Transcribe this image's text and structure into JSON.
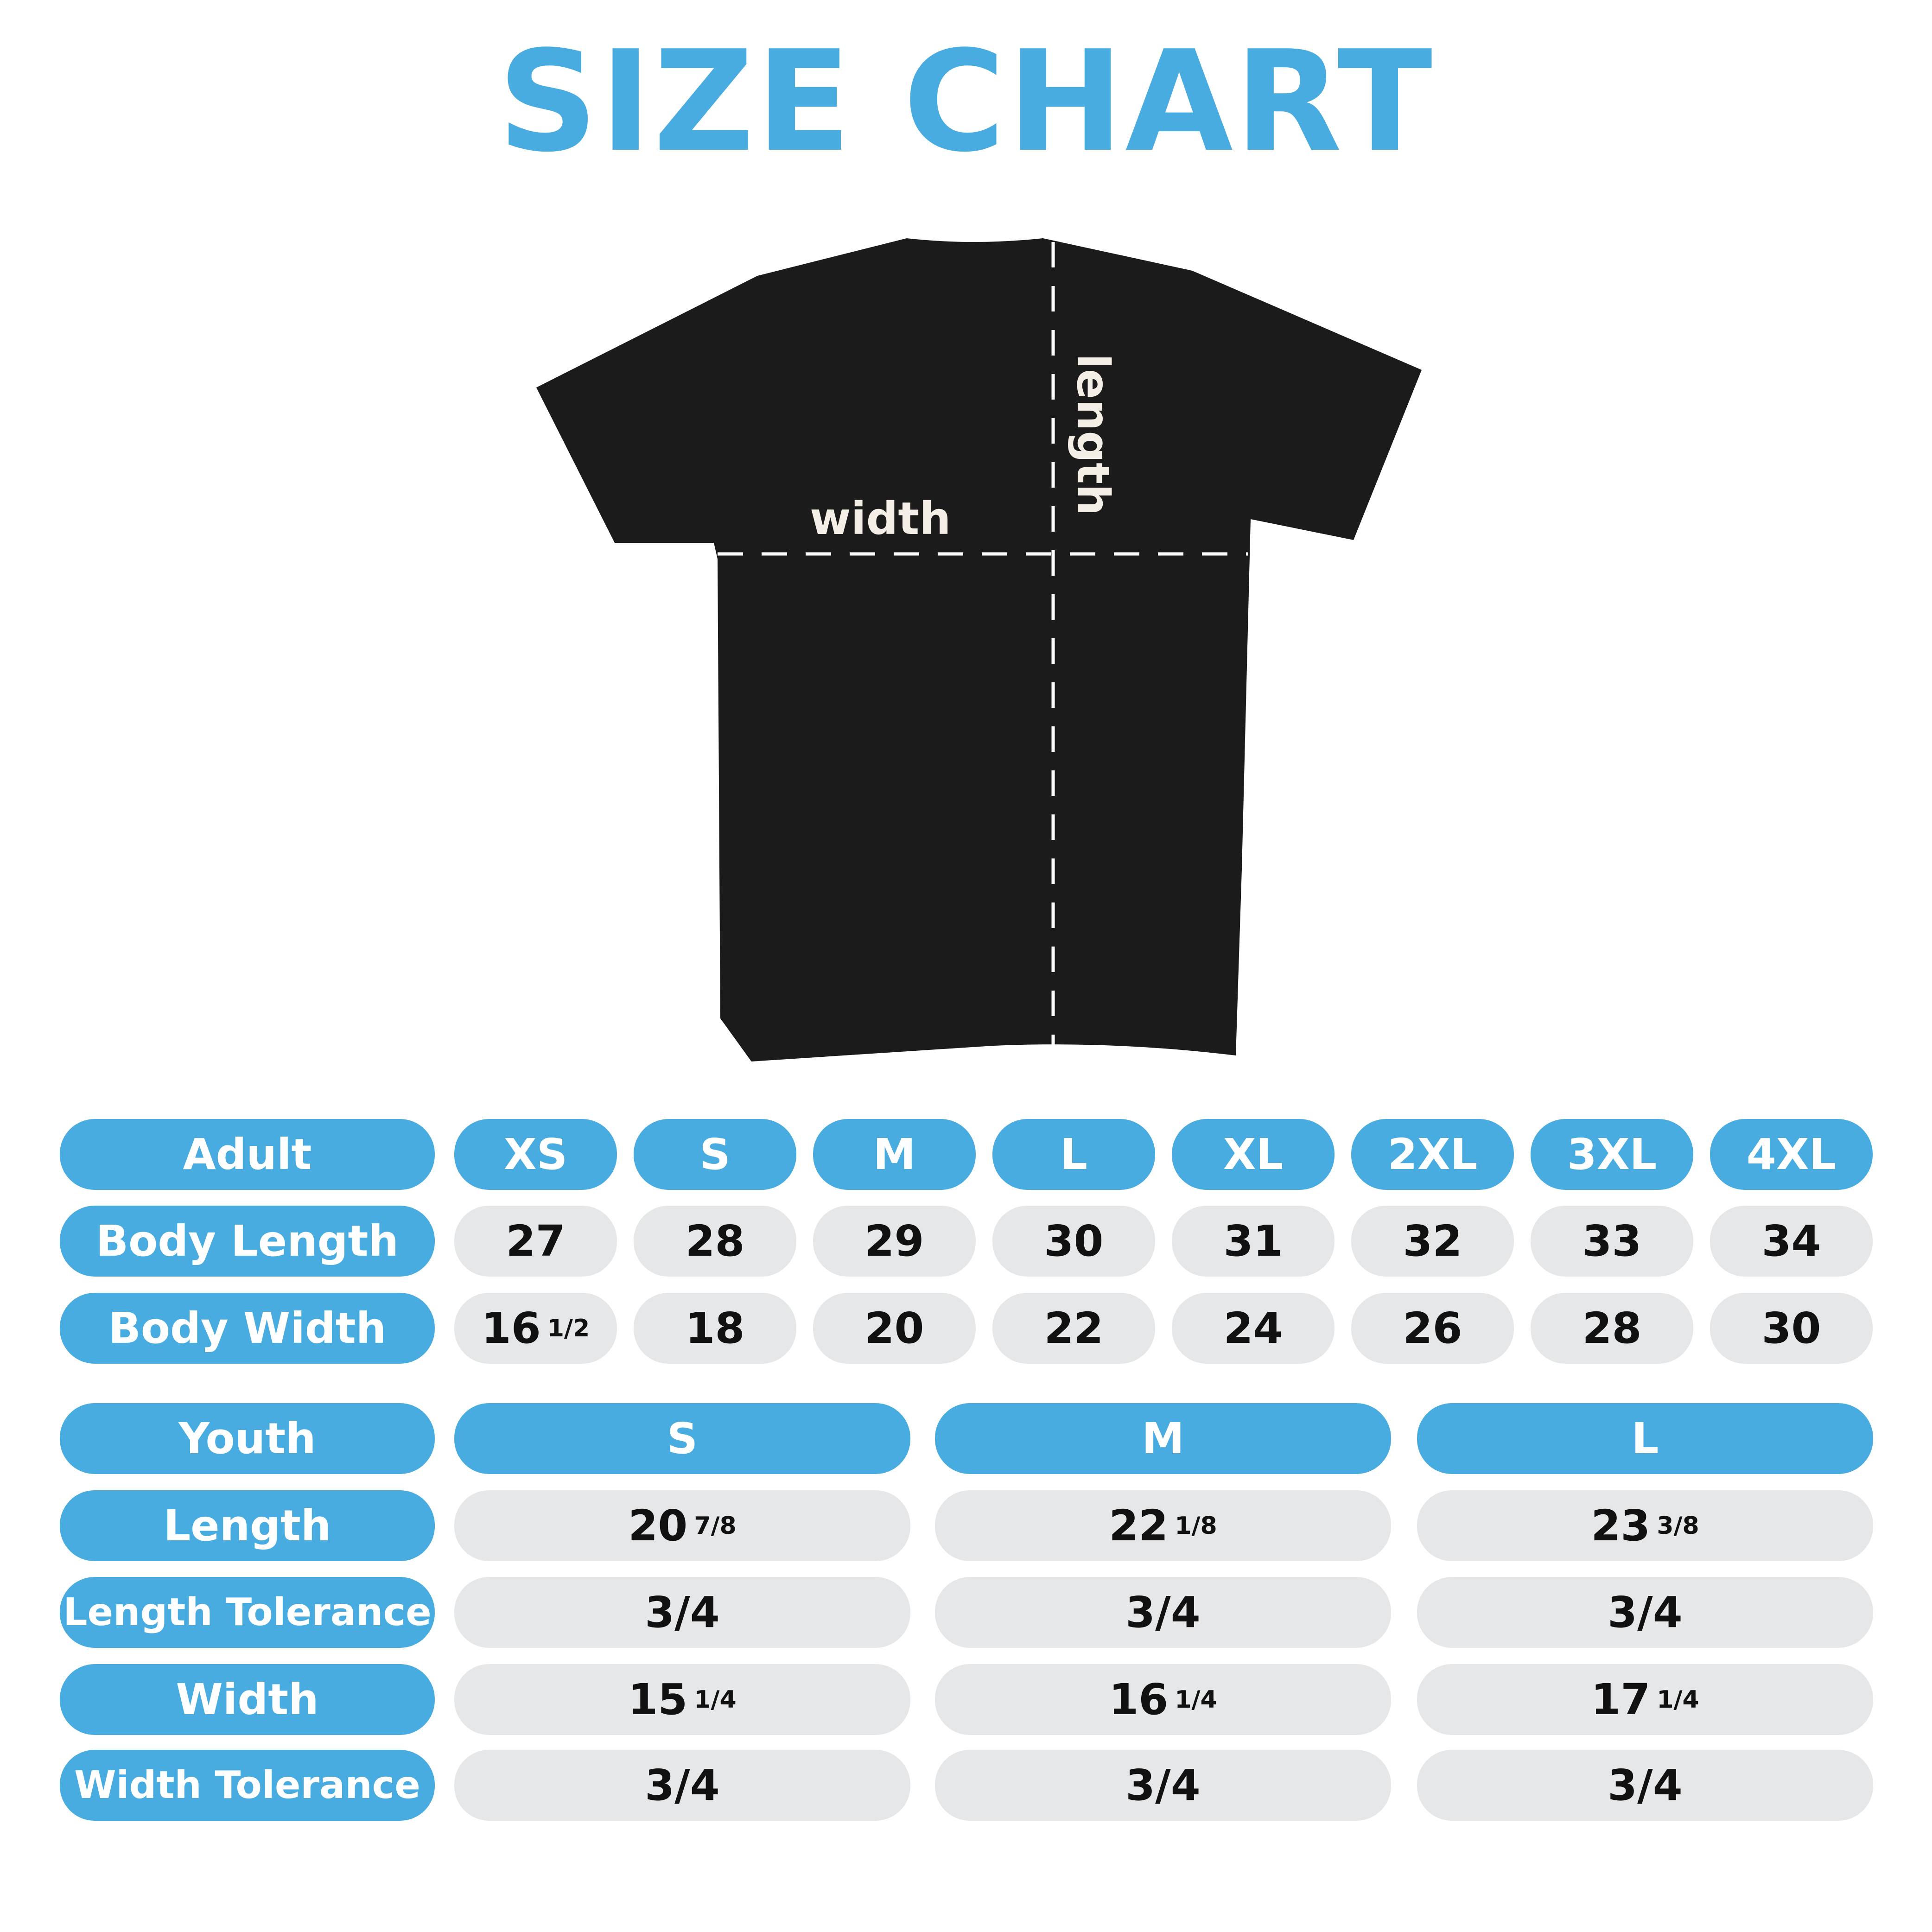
{
  "title": "SIZE CHART",
  "shirt": {
    "width_label": "width",
    "length_label": "length",
    "color": "#1b1b1b"
  },
  "colors": {
    "accent": "#48ace0",
    "cell": "#e6e7e8"
  },
  "adult": {
    "header": "Adult",
    "sizes": [
      "XS",
      "S",
      "M",
      "L",
      "XL",
      "2XL",
      "3XL",
      "4XL"
    ],
    "rows": [
      {
        "label": "Body Length",
        "values": [
          {
            "w": "27",
            "f": ""
          },
          {
            "w": "28",
            "f": ""
          },
          {
            "w": "29",
            "f": ""
          },
          {
            "w": "30",
            "f": ""
          },
          {
            "w": "31",
            "f": ""
          },
          {
            "w": "32",
            "f": ""
          },
          {
            "w": "33",
            "f": ""
          },
          {
            "w": "34",
            "f": ""
          }
        ]
      },
      {
        "label": "Body Width",
        "values": [
          {
            "w": "16",
            "f": "1/2"
          },
          {
            "w": "18",
            "f": ""
          },
          {
            "w": "20",
            "f": ""
          },
          {
            "w": "22",
            "f": ""
          },
          {
            "w": "24",
            "f": ""
          },
          {
            "w": "26",
            "f": ""
          },
          {
            "w": "28",
            "f": ""
          },
          {
            "w": "30",
            "f": ""
          }
        ]
      }
    ]
  },
  "youth": {
    "header": "Youth",
    "sizes": [
      "S",
      "M",
      "L"
    ],
    "rows": [
      {
        "label": "Length",
        "values": [
          {
            "w": "20",
            "f": "7/8"
          },
          {
            "w": "22",
            "f": "1/8"
          },
          {
            "w": "23",
            "f": "3/8"
          }
        ]
      },
      {
        "label": "Length Tolerance",
        "values": [
          {
            "w": "3/4",
            "f": ""
          },
          {
            "w": "3/4",
            "f": ""
          },
          {
            "w": "3/4",
            "f": ""
          }
        ]
      },
      {
        "label": "Width",
        "values": [
          {
            "w": "15",
            "f": "1/4"
          },
          {
            "w": "16",
            "f": "1/4"
          },
          {
            "w": "17",
            "f": "1/4"
          }
        ]
      },
      {
        "label": "Width Tolerance",
        "values": [
          {
            "w": "3/4",
            "f": ""
          },
          {
            "w": "3/4",
            "f": ""
          },
          {
            "w": "3/4",
            "f": ""
          }
        ]
      }
    ]
  }
}
